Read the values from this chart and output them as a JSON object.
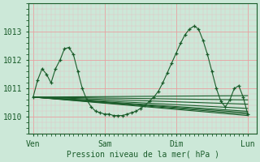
{
  "xlabel": "Pression niveau de la mer( hPa )",
  "bg_color": "#cce8d8",
  "grid_color_major": "#e8a0a0",
  "grid_color_minor": "#e8c0c0",
  "line_color": "#1a5c2a",
  "marker": "+",
  "xtick_labels": [
    "Ven",
    "Sam",
    "Dim",
    "Lun"
  ],
  "xtick_positions": [
    0,
    32,
    64,
    96
  ],
  "ytick_labels": [
    "1010",
    "1011",
    "1012",
    "1013"
  ],
  "ytick_positions": [
    1010,
    1011,
    1012,
    1013
  ],
  "ylim": [
    1009.4,
    1013.6
  ],
  "xlim": [
    -2,
    100
  ],
  "n_points": 49,
  "main_series": [
    1010.7,
    1011.3,
    1011.7,
    1011.5,
    1011.2,
    1011.7,
    1012.0,
    1012.4,
    1012.45,
    1012.2,
    1011.6,
    1011.0,
    1010.6,
    1010.35,
    1010.2,
    1010.15,
    1010.1,
    1010.1,
    1010.05,
    1010.05,
    1010.05,
    1010.1,
    1010.15,
    1010.2,
    1010.3,
    1010.4,
    1010.55,
    1010.7,
    1010.9,
    1011.2,
    1011.55,
    1011.9,
    1012.25,
    1012.6,
    1012.9,
    1013.1,
    1013.2,
    1013.1,
    1012.7,
    1012.2,
    1011.6,
    1011.0,
    1010.55,
    1010.35,
    1010.6,
    1011.0,
    1011.1,
    1010.7,
    1010.1
  ],
  "straight_lines": [
    [
      1010.7,
      1010.05
    ],
    [
      1010.7,
      1010.1
    ],
    [
      1010.7,
      1010.15
    ],
    [
      1010.7,
      1010.2
    ],
    [
      1010.7,
      1010.3
    ],
    [
      1010.7,
      1010.45
    ],
    [
      1010.7,
      1010.6
    ],
    [
      1010.7,
      1010.75
    ]
  ]
}
